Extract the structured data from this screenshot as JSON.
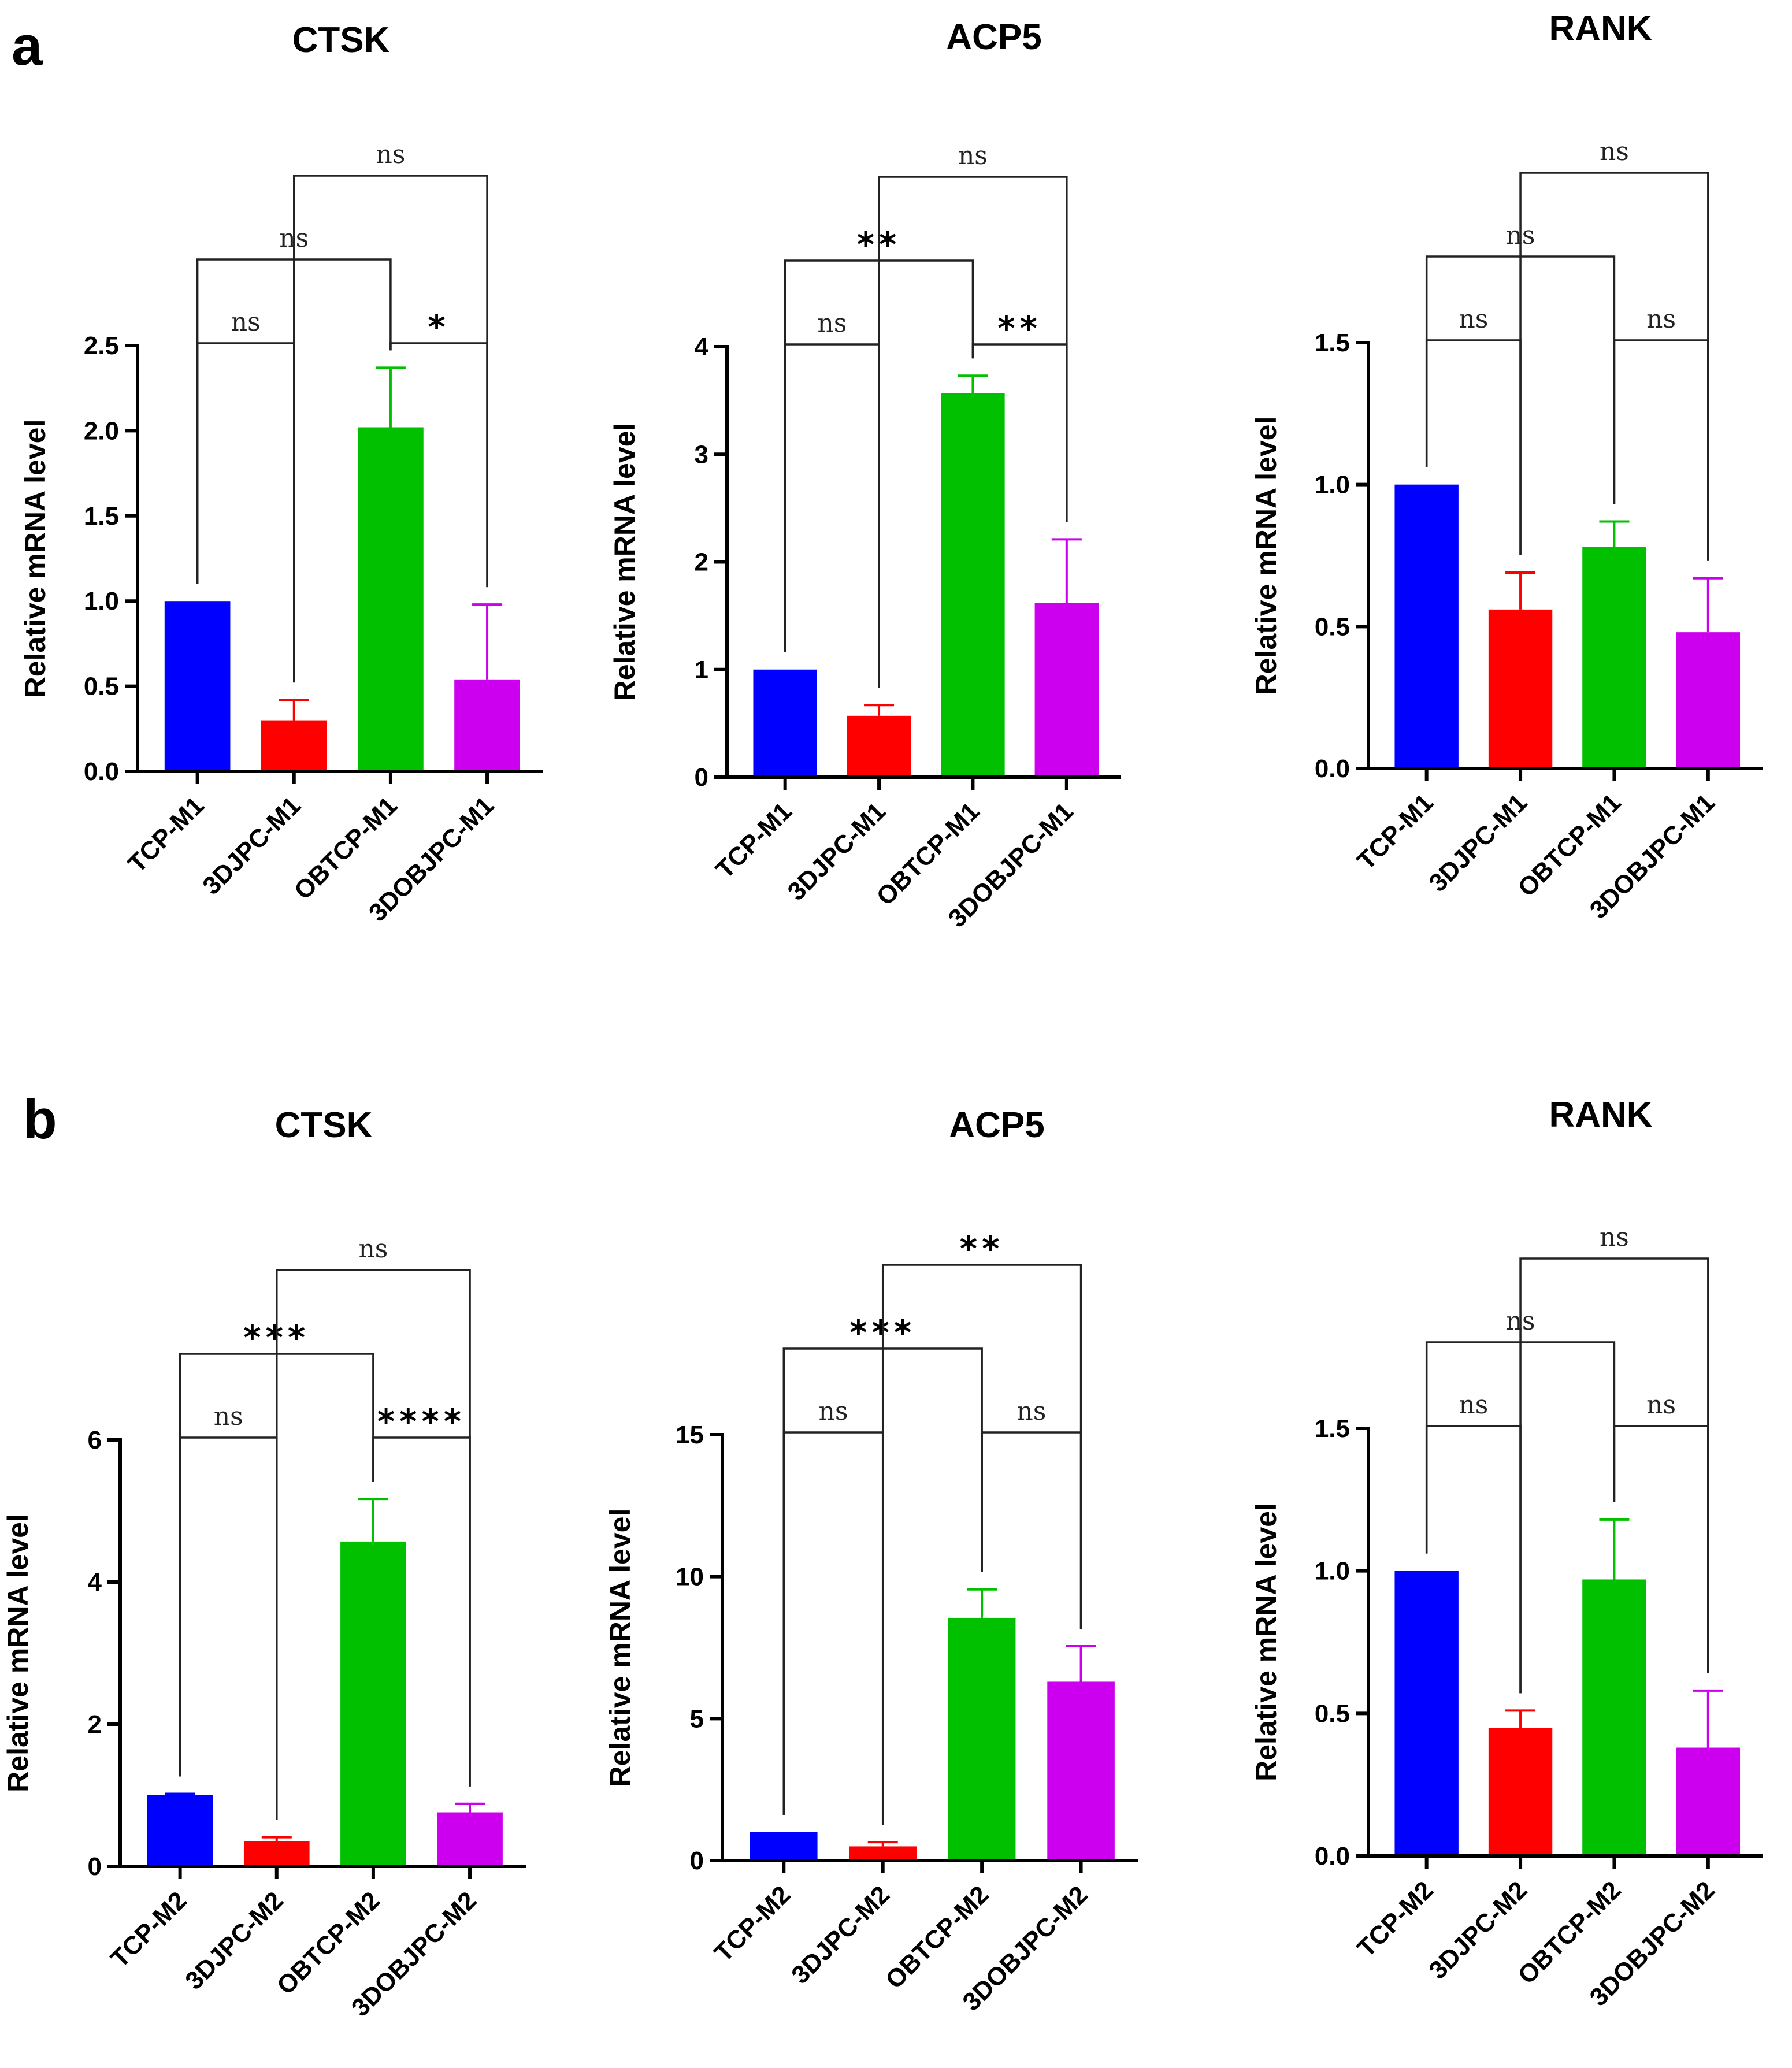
{
  "figure": {
    "ylabel": "Relative mRNA level",
    "panels": [
      {
        "letter": "a",
        "label_y_hint": "top"
      },
      {
        "letter": "b",
        "label_y_hint": "bottom"
      }
    ]
  },
  "chart_data": [
    {
      "type": "bar",
      "panel": "a",
      "title": "CTSK",
      "categories": [
        "TCP-M1",
        "3DJPC-M1",
        "OBTCP-M1",
        "3DOBJPC-M1"
      ],
      "values": [
        1.0,
        0.3,
        2.02,
        0.54
      ],
      "errors": [
        0.0,
        0.12,
        0.35,
        0.44
      ],
      "colors": [
        "#0000ff",
        "#ff0000",
        "#00c000",
        "#cc00ee"
      ],
      "ylim": [
        0,
        2.5
      ],
      "yticks": [
        "0.0",
        "0.5",
        "1.0",
        "1.5",
        "2.0",
        "2.5"
      ],
      "ytick_values": [
        0,
        0.5,
        1.0,
        1.5,
        2.0,
        2.5
      ],
      "xlabel": "",
      "ylabel": "Relative mRNA level",
      "comparisons": [
        {
          "from": 0,
          "to": 1,
          "label": "ns",
          "level": 0
        },
        {
          "from": 2,
          "to": 3,
          "label": "*",
          "level": 0
        },
        {
          "from": 0,
          "to": 2,
          "label": "ns",
          "level": 1
        },
        {
          "from": 1,
          "to": 3,
          "label": "ns",
          "level": 2
        }
      ]
    },
    {
      "type": "bar",
      "panel": "a",
      "title": "ACP5",
      "categories": [
        "TCP-M1",
        "3DJPC-M1",
        "OBTCP-M1",
        "3DOBJPC-M1"
      ],
      "values": [
        1.0,
        0.57,
        3.57,
        1.62
      ],
      "errors": [
        0.0,
        0.1,
        0.16,
        0.59
      ],
      "colors": [
        "#0000ff",
        "#ff0000",
        "#00c000",
        "#cc00ee"
      ],
      "ylim": [
        0,
        4
      ],
      "yticks": [
        "0",
        "1",
        "2",
        "3",
        "4"
      ],
      "ytick_values": [
        0,
        1,
        2,
        3,
        4
      ],
      "xlabel": "",
      "ylabel": "Relative mRNA level",
      "comparisons": [
        {
          "from": 0,
          "to": 1,
          "label": "ns",
          "level": 0
        },
        {
          "from": 2,
          "to": 3,
          "label": "**",
          "level": 0
        },
        {
          "from": 0,
          "to": 2,
          "label": "**",
          "level": 1
        },
        {
          "from": 1,
          "to": 3,
          "label": "ns",
          "level": 2
        }
      ]
    },
    {
      "type": "bar",
      "panel": "a",
      "title": "RANK",
      "categories": [
        "TCP-M1",
        "3DJPC-M1",
        "OBTCP-M1",
        "3DOBJPC-M1"
      ],
      "values": [
        1.0,
        0.56,
        0.78,
        0.48
      ],
      "errors": [
        0.0,
        0.13,
        0.09,
        0.19
      ],
      "colors": [
        "#0000ff",
        "#ff0000",
        "#00c000",
        "#cc00ee"
      ],
      "ylim": [
        0,
        1.5
      ],
      "yticks": [
        "0.0",
        "0.5",
        "1.0",
        "1.5"
      ],
      "ytick_values": [
        0,
        0.5,
        1.0,
        1.5
      ],
      "xlabel": "",
      "ylabel": "Relative mRNA level",
      "comparisons": [
        {
          "from": 0,
          "to": 1,
          "label": "ns",
          "level": 0
        },
        {
          "from": 2,
          "to": 3,
          "label": "ns",
          "level": 0
        },
        {
          "from": 0,
          "to": 2,
          "label": "ns",
          "level": 1
        },
        {
          "from": 1,
          "to": 3,
          "label": "ns",
          "level": 2
        }
      ]
    },
    {
      "type": "bar",
      "panel": "b",
      "title": "CTSK",
      "categories": [
        "TCP-M2",
        "3DJPC-M2",
        "OBTCP-M2",
        "3DOBJPC-M2"
      ],
      "values": [
        1.0,
        0.35,
        4.57,
        0.76
      ],
      "errors": [
        0.02,
        0.06,
        0.6,
        0.12
      ],
      "colors": [
        "#0000ff",
        "#ff0000",
        "#00c000",
        "#cc00ee"
      ],
      "ylim": [
        0,
        6
      ],
      "yticks": [
        "0",
        "2",
        "4",
        "6"
      ],
      "ytick_values": [
        0,
        2,
        4,
        6
      ],
      "xlabel": "",
      "ylabel": "Relative mRNA level",
      "comparisons": [
        {
          "from": 0,
          "to": 1,
          "label": "ns",
          "level": 0
        },
        {
          "from": 2,
          "to": 3,
          "label": "****",
          "level": 0
        },
        {
          "from": 0,
          "to": 2,
          "label": "***",
          "level": 1
        },
        {
          "from": 1,
          "to": 3,
          "label": "ns",
          "level": 2
        }
      ]
    },
    {
      "type": "bar",
      "panel": "b",
      "title": "ACP5",
      "categories": [
        "TCP-M2",
        "3DJPC-M2",
        "OBTCP-M2",
        "3DOBJPC-M2"
      ],
      "values": [
        1.0,
        0.5,
        8.55,
        6.3
      ],
      "errors": [
        0.0,
        0.15,
        1.0,
        1.25
      ],
      "colors": [
        "#0000ff",
        "#ff0000",
        "#00c000",
        "#cc00ee"
      ],
      "ylim": [
        0,
        15
      ],
      "yticks": [
        "0",
        "5",
        "10",
        "15"
      ],
      "ytick_values": [
        0,
        5,
        10,
        15
      ],
      "xlabel": "",
      "ylabel": "Relative mRNA level",
      "comparisons": [
        {
          "from": 0,
          "to": 1,
          "label": "ns",
          "level": 0
        },
        {
          "from": 2,
          "to": 3,
          "label": "ns",
          "level": 0
        },
        {
          "from": 0,
          "to": 2,
          "label": "***",
          "level": 1
        },
        {
          "from": 1,
          "to": 3,
          "label": "**",
          "level": 2
        }
      ]
    },
    {
      "type": "bar",
      "panel": "b",
      "title": "RANK",
      "categories": [
        "TCP-M2",
        "3DJPC-M2",
        "OBTCP-M2",
        "3DOBJPC-M2"
      ],
      "values": [
        1.0,
        0.45,
        0.97,
        0.38
      ],
      "errors": [
        0.0,
        0.06,
        0.21,
        0.2
      ],
      "colors": [
        "#0000ff",
        "#ff0000",
        "#00c000",
        "#cc00ee"
      ],
      "ylim": [
        0,
        1.5
      ],
      "yticks": [
        "0.0",
        "0.5",
        "1.0",
        "1.5"
      ],
      "ytick_values": [
        0,
        0.5,
        1.0,
        1.5
      ],
      "xlabel": "",
      "ylabel": "Relative mRNA level",
      "comparisons": [
        {
          "from": 0,
          "to": 1,
          "label": "ns",
          "level": 0
        },
        {
          "from": 2,
          "to": 3,
          "label": "ns",
          "level": 0
        },
        {
          "from": 0,
          "to": 2,
          "label": "ns",
          "level": 1
        },
        {
          "from": 1,
          "to": 3,
          "label": "ns",
          "level": 2
        }
      ]
    }
  ]
}
